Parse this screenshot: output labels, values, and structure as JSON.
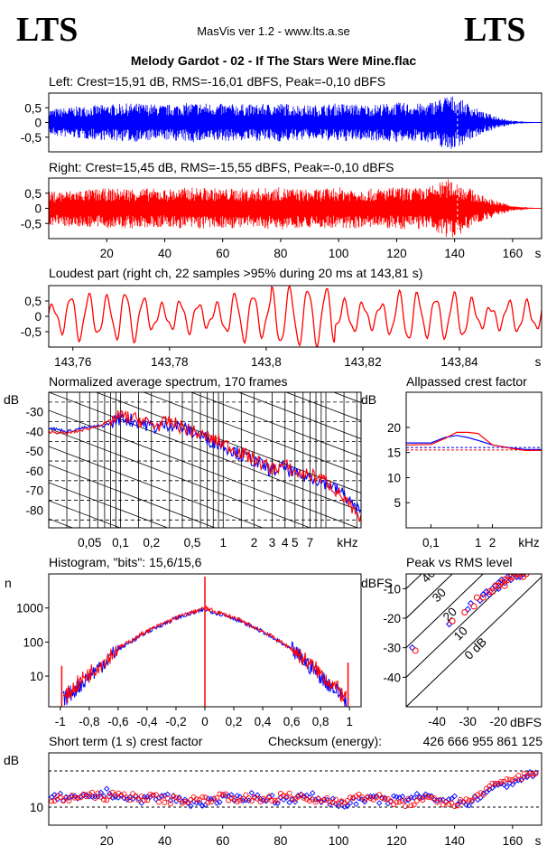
{
  "header": {
    "logo_left": "LTS",
    "logo_right": "LTS",
    "app_title": "MasVis ver 1.2 - www.lts.a.se",
    "file_title": "Melody Gardot - 02 - If The Stars Were Mine.flac"
  },
  "colors": {
    "left": "#0000ff",
    "right": "#ff0000",
    "grid": "#000000",
    "background": "#ffffff"
  },
  "chart_data": [
    {
      "id": "waveform_left",
      "type": "area",
      "title": "Left: Crest=15,91 dB, RMS=-16,01 dBFS, Peak=-0,10 dBFS",
      "ylim": [
        -1,
        1
      ],
      "yticks": [
        "0,5",
        "0",
        "-0,5"
      ],
      "xlim": [
        0,
        170
      ],
      "series": [
        {
          "color": "#0000ff",
          "x": [
            0,
            10,
            20,
            30,
            40,
            50,
            60,
            70,
            80,
            90,
            100,
            110,
            120,
            130,
            138,
            141,
            150,
            160,
            170
          ],
          "envelope": [
            0.45,
            0.55,
            0.62,
            0.66,
            0.6,
            0.68,
            0.64,
            0.62,
            0.66,
            0.58,
            0.66,
            0.6,
            0.68,
            0.64,
            0.95,
            0.85,
            0.35,
            0.06,
            0.0
          ]
        }
      ]
    },
    {
      "id": "waveform_right",
      "type": "area",
      "title": "Right: Crest=15,45 dB, RMS=-15,55 dBFS, Peak=-0,10 dBFS",
      "ylim": [
        -1,
        1
      ],
      "yticks": [
        "0,5",
        "0",
        "-0,5"
      ],
      "xlim": [
        0,
        170
      ],
      "xticks": [
        "20",
        "40",
        "60",
        "80",
        "100",
        "120",
        "140",
        "160",
        "s"
      ],
      "series": [
        {
          "color": "#ff0000",
          "x": [
            0,
            10,
            20,
            30,
            40,
            50,
            60,
            70,
            80,
            90,
            100,
            110,
            120,
            130,
            138,
            141,
            150,
            160,
            170
          ],
          "envelope": [
            0.55,
            0.62,
            0.66,
            0.68,
            0.64,
            0.7,
            0.66,
            0.66,
            0.7,
            0.62,
            0.7,
            0.64,
            0.7,
            0.68,
            0.98,
            0.9,
            0.4,
            0.08,
            0.0
          ]
        }
      ]
    },
    {
      "id": "loudest_part",
      "type": "line",
      "title": "Loudest part (right ch, 22 samples >95% during 20 ms at 143,81 s)",
      "ylim": [
        -1,
        1
      ],
      "yticks": [
        "0,5",
        "0",
        "-0,5"
      ],
      "xlim": [
        143.755,
        143.857
      ],
      "xticks": [
        "143,76",
        "143,78",
        "143,8",
        "143,82",
        "143,84",
        "s"
      ],
      "series": [
        {
          "color": "#ff0000",
          "cycles": 27
        }
      ]
    },
    {
      "id": "average_spectrum",
      "type": "line",
      "title": "Normalized average spectrum, 170 frames",
      "ylabel": "dB",
      "yticks": [
        "-30",
        "-40",
        "-50",
        "-60",
        "-70",
        "-80"
      ],
      "ylim": [
        -89,
        -20
      ],
      "xscale": "log",
      "xlim": [
        0.02,
        22
      ],
      "xticks": [
        "0,05",
        "0,1",
        "0,2",
        "0,5",
        "1",
        "2",
        "3",
        "4",
        "5",
        "7",
        "kHz"
      ],
      "series": [
        {
          "name": "",
          "color": "#0000ff",
          "x": [
            0.02,
            0.03,
            0.045,
            0.07,
            0.1,
            0.15,
            0.22,
            0.3,
            0.5,
            0.7,
            1,
            1.5,
            2,
            3,
            4,
            5,
            7,
            10,
            15,
            22
          ],
          "y": [
            -38,
            -40,
            -38,
            -37,
            -33,
            -35,
            -38,
            -36,
            -40,
            -44,
            -47,
            -52,
            -55,
            -60,
            -58,
            -62,
            -63,
            -66,
            -72,
            -82
          ]
        },
        {
          "name": "",
          "color": "#ff0000",
          "x": [
            0.02,
            0.03,
            0.045,
            0.07,
            0.1,
            0.15,
            0.22,
            0.3,
            0.5,
            0.7,
            1,
            1.5,
            2,
            3,
            4,
            5,
            7,
            10,
            15,
            22
          ],
          "y": [
            -40,
            -41,
            -39,
            -36,
            -32,
            -34,
            -37,
            -35,
            -40,
            -43,
            -46,
            -51,
            -54,
            -59,
            -57,
            -61,
            -62,
            -65,
            -74,
            -86
          ]
        }
      ]
    },
    {
      "id": "allpassed_crest",
      "type": "line",
      "title": "Allpassed crest factor",
      "ylabel": "dB",
      "yticks": [
        "20",
        "15",
        "10",
        "5"
      ],
      "ylim": [
        0,
        27
      ],
      "xscale": "log",
      "xlim": [
        0.03,
        22
      ],
      "xticks": [
        "0,1",
        "1",
        "2",
        "kHz"
      ],
      "series": [
        {
          "name": "",
          "color": "#0000ff",
          "x": [
            0.03,
            0.1,
            0.2,
            0.35,
            0.6,
            1,
            2,
            5,
            10,
            22
          ],
          "y": [
            16.9,
            16.9,
            18.0,
            18.4,
            18.0,
            17.4,
            16.5,
            15.9,
            15.6,
            15.6
          ]
        },
        {
          "name": "",
          "color": "#ff0000",
          "x": [
            0.03,
            0.1,
            0.2,
            0.35,
            0.6,
            1,
            2,
            5,
            10,
            22
          ],
          "y": [
            16.5,
            16.6,
            17.8,
            19.0,
            19.0,
            18.8,
            16.5,
            15.8,
            15.4,
            15.4
          ]
        }
      ],
      "reference_lines": [
        16.0,
        15.5
      ]
    },
    {
      "id": "histogram",
      "type": "line",
      "title": "Histogram, \"bits\": 15,6/15,6",
      "ylabel": "n",
      "yscale": "log",
      "yticks": [
        "1000",
        "100",
        "10"
      ],
      "xlim": [
        -1.08,
        1.08
      ],
      "xticks": [
        "-1",
        "-0,8",
        "-0,6",
        "-0,4",
        "-0,2",
        "0",
        "0,2",
        "0,4",
        "0,6",
        "0,8",
        "1"
      ],
      "series": [
        {
          "name": "",
          "color": "#0000ff",
          "x": [
            -0.98,
            -0.9,
            -0.8,
            -0.6,
            -0.4,
            -0.2,
            0,
            0.2,
            0.4,
            0.6,
            0.8,
            0.9,
            0.98
          ],
          "y": [
            2,
            4,
            10,
            60,
            200,
            500,
            900,
            500,
            200,
            60,
            10,
            4,
            2
          ]
        },
        {
          "name": "",
          "color": "#ff0000",
          "x": [
            -0.98,
            -0.9,
            -0.8,
            -0.6,
            -0.4,
            -0.2,
            0,
            0.2,
            0.4,
            0.6,
            0.8,
            0.9,
            0.98
          ],
          "y": [
            2,
            5,
            12,
            65,
            210,
            520,
            1000,
            520,
            210,
            65,
            12,
            5,
            2
          ]
        }
      ]
    },
    {
      "id": "peak_vs_rms",
      "type": "scatter",
      "title": "Peak vs RMS level",
      "ylabel": "dBFS",
      "xlabel": "dBFS",
      "xlim": [
        -50,
        -6
      ],
      "ylim": [
        -50,
        -5
      ],
      "yticks": [
        "-10",
        "-20",
        "-30",
        "-40"
      ],
      "xticks": [
        "-40",
        "-30",
        "-20"
      ],
      "diagonal_labels": [
        "40",
        "30",
        "20",
        "10",
        "0 dB"
      ],
      "series": [
        {
          "name": "",
          "color": "#0000ff",
          "x": [
            -48,
            -36,
            -30,
            -29,
            -26,
            -25,
            -24,
            -23,
            -22,
            -21,
            -20,
            -20,
            -19,
            -18,
            -17,
            -16,
            -15,
            -14,
            -13,
            -12
          ],
          "y": [
            -30,
            -22,
            -17,
            -15,
            -14,
            -12,
            -11,
            -12,
            -10,
            -9,
            -8,
            -10,
            -7,
            -8,
            -6,
            -7,
            -5,
            -6,
            -6,
            -5
          ]
        },
        {
          "name": "",
          "color": "#ff0000",
          "x": [
            -47,
            -35,
            -31,
            -28,
            -27,
            -25,
            -23,
            -22,
            -21,
            -20,
            -19,
            -18,
            -18,
            -17,
            -16,
            -15,
            -14,
            -13,
            -12,
            -11
          ],
          "y": [
            -31,
            -21,
            -18,
            -16,
            -13,
            -13,
            -11,
            -11,
            -9,
            -9,
            -8,
            -7,
            -9,
            -7,
            -6,
            -6,
            -5,
            -5,
            -6,
            -5
          ]
        }
      ]
    },
    {
      "id": "short_term_crest",
      "type": "scatter",
      "title": "Short term (1 s) crest factor",
      "checksum_label": "Checksum (energy):",
      "checksum_value": "426 666 955 861 125",
      "ylabel": "dB",
      "yticks": [
        "10"
      ],
      "ylim": [
        5,
        25
      ],
      "xlim": [
        0,
        170
      ],
      "xticks": [
        "20",
        "40",
        "60",
        "80",
        "100",
        "120",
        "140",
        "160",
        "s"
      ],
      "reference_lines": [
        20,
        10
      ],
      "series": [
        {
          "name": "",
          "color": "#0000ff",
          "x": [
            1,
            10,
            20,
            30,
            40,
            50,
            60,
            70,
            80,
            90,
            100,
            110,
            120,
            130,
            140,
            145,
            150,
            160,
            167
          ],
          "y": [
            13,
            12,
            14,
            12,
            13,
            11,
            12,
            13,
            12,
            13,
            11,
            12,
            12,
            13,
            12,
            11,
            14,
            17,
            19
          ]
        },
        {
          "name": "",
          "color": "#ff0000",
          "x": [
            2,
            11,
            21,
            31,
            41,
            51,
            61,
            71,
            81,
            91,
            101,
            111,
            121,
            131,
            141,
            146,
            151,
            161,
            168
          ],
          "y": [
            12,
            13,
            13,
            13,
            12,
            12,
            13,
            12,
            13,
            12,
            12,
            13,
            11,
            12,
            11,
            12,
            15,
            18,
            20
          ]
        }
      ]
    }
  ]
}
